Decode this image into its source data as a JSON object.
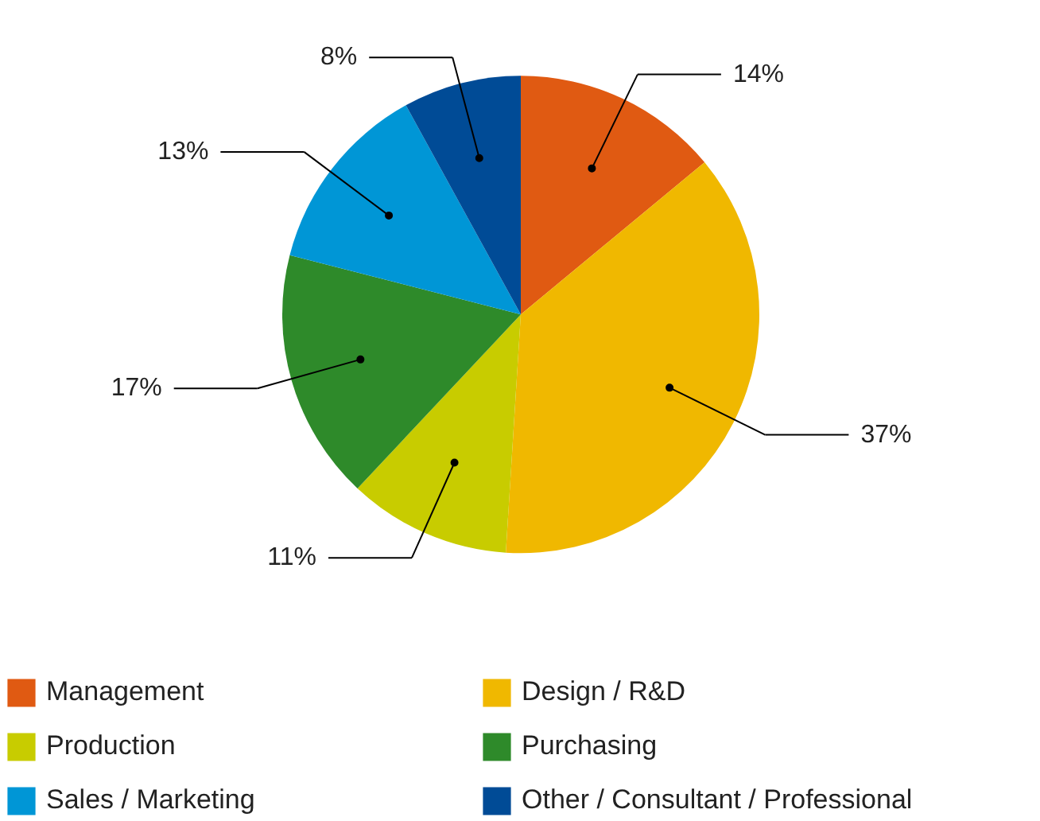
{
  "chart_data": {
    "type": "pie",
    "categories": [
      "Management",
      "Design / R&D",
      "Production",
      "Purchasing",
      "Sales / Marketing",
      "Other / Consultant / Professional"
    ],
    "values": [
      14,
      37,
      11,
      17,
      13,
      8
    ],
    "colors": [
      "#e05a12",
      "#f0b800",
      "#c8cc00",
      "#2e8a2a",
      "#0096d6",
      "#004b96"
    ],
    "value_labels": [
      "14%",
      "37%",
      "11%",
      "17%",
      "13%",
      "8%"
    ],
    "legend": "bottom"
  }
}
